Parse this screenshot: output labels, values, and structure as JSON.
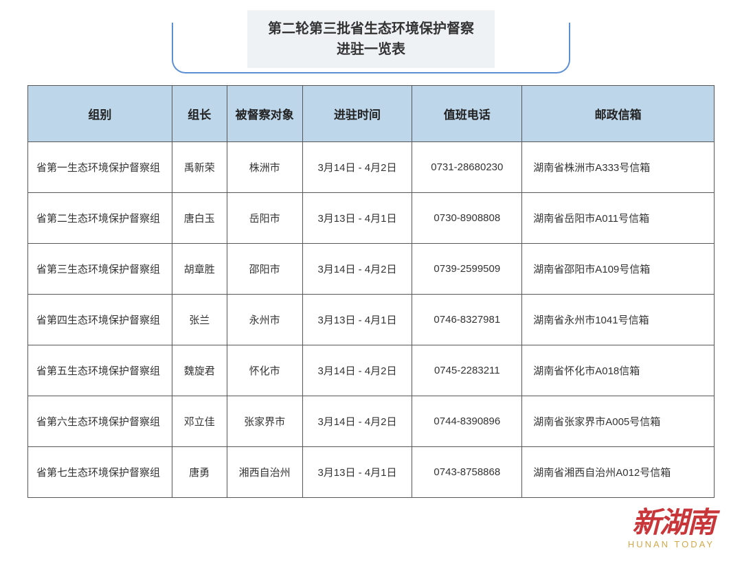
{
  "title": {
    "line1": "第二轮第三批省生态环境保护督察",
    "line2": "进驻一览表"
  },
  "table": {
    "columns": [
      {
        "key": "group",
        "label": "组别",
        "width": "21%",
        "align": "left"
      },
      {
        "key": "leader",
        "label": "组长",
        "width": "8%",
        "align": "center"
      },
      {
        "key": "target",
        "label": "被督察对象",
        "width": "11%",
        "align": "center"
      },
      {
        "key": "time",
        "label": "进驻时间",
        "width": "16%",
        "align": "center"
      },
      {
        "key": "phone",
        "label": "值班电话",
        "width": "16%",
        "align": "center"
      },
      {
        "key": "mailbox",
        "label": "邮政信箱",
        "width": "28%",
        "align": "left"
      }
    ],
    "header_bg": "#bdd6ea",
    "border_color": "#555555",
    "cell_bg": "#ffffff",
    "rows": [
      {
        "group": "省第一生态环境保护督察组",
        "leader": "禹新荣",
        "target": "株洲市",
        "time": "3月14日 - 4月2日",
        "phone": "0731-28680230",
        "mailbox": "湖南省株洲市A333号信箱"
      },
      {
        "group": "省第二生态环境保护督察组",
        "leader": "唐白玉",
        "target": "岳阳市",
        "time": "3月13日 - 4月1日",
        "phone": "0730-8908808",
        "mailbox": "湖南省岳阳市A011号信箱"
      },
      {
        "group": "省第三生态环境保护督察组",
        "leader": "胡章胜",
        "target": "邵阳市",
        "time": "3月14日 - 4月2日",
        "phone": "0739-2599509",
        "mailbox": "湖南省邵阳市A109号信箱"
      },
      {
        "group": "省第四生态环境保护督察组",
        "leader": "张兰",
        "target": "永州市",
        "time": "3月13日 - 4月1日",
        "phone": "0746-8327981",
        "mailbox": "湖南省永州市1041号信箱"
      },
      {
        "group": "省第五生态环境保护督察组",
        "leader": "魏旋君",
        "target": "怀化市",
        "time": "3月14日 - 4月2日",
        "phone": "0745-2283211",
        "mailbox": "湖南省怀化市A018信箱"
      },
      {
        "group": "省第六生态环境保护督察组",
        "leader": "邓立佳",
        "target": "张家界市",
        "time": "3月14日 - 4月2日",
        "phone": "0744-8390896",
        "mailbox": "湖南省张家界市A005号信箱"
      },
      {
        "group": "省第七生态环境保护督察组",
        "leader": "唐勇",
        "target": "湘西自治州",
        "time": "3月13日 - 4月1日",
        "phone": "0743-8758868",
        "mailbox": "湖南省湘西自治州A012号信箱"
      }
    ]
  },
  "watermark": {
    "main": "新湖南",
    "sub": "HUNAN TODAY",
    "main_color": "#c8363a",
    "sub_color": "#d4a84a"
  },
  "styling": {
    "title_bg": "#eef2f5",
    "title_border_color": "#5b8fd4",
    "font_family": "Microsoft YaHei",
    "header_font_size": 17,
    "cell_font_size": 15,
    "title_font_size": 20
  }
}
